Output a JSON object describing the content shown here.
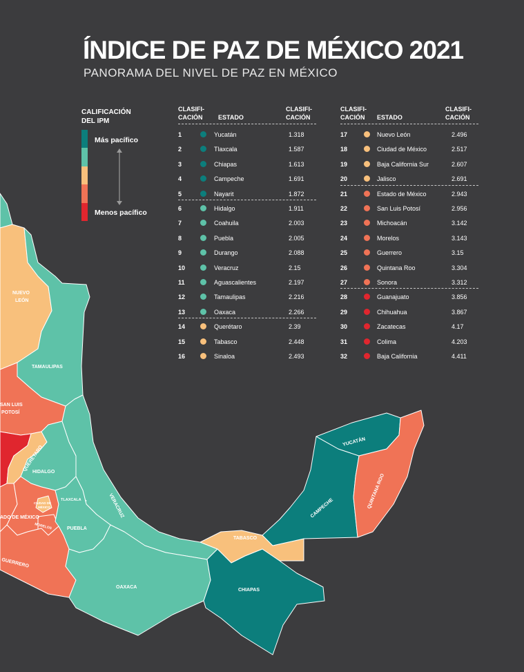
{
  "header": {
    "title": "ÍNDICE DE PAZ DE MÉXICO 2021",
    "subtitle": "PANORAMA DEL NIVEL DE PAZ EN MÉXICO"
  },
  "legend": {
    "title_line1": "CALIFICACIÓN",
    "title_line2": "DEL IPM",
    "top_label": "Más pacífico",
    "bottom_label": "Menos pacífico",
    "colors": [
      "#0c7e7c",
      "#5ec2a8",
      "#f8c07c",
      "#f07356",
      "#e0262e"
    ]
  },
  "table": {
    "headers": {
      "rank_line1": "CLASIFI-",
      "rank_line2": "CACIÓN",
      "state": "ESTADO",
      "score_line1": "CLASIFI-",
      "score_line2": "CACIÓN"
    },
    "left": [
      {
        "rank": "1",
        "state": "Yucatán",
        "score": "1.318",
        "tier": 0
      },
      {
        "rank": "2",
        "state": "Tlaxcala",
        "score": "1.587",
        "tier": 0
      },
      {
        "rank": "3",
        "state": "Chiapas",
        "score": "1.613",
        "tier": 0
      },
      {
        "rank": "4",
        "state": "Campeche",
        "score": "1.691",
        "tier": 0
      },
      {
        "rank": "5",
        "state": "Nayarit",
        "score": "1.872",
        "tier": 0
      },
      {
        "rank": "6",
        "state": "Hidalgo",
        "score": "1.911",
        "tier": 1
      },
      {
        "rank": "7",
        "state": "Coahuila",
        "score": "2.003",
        "tier": 1
      },
      {
        "rank": "8",
        "state": "Puebla",
        "score": "2.005",
        "tier": 1
      },
      {
        "rank": "9",
        "state": "Durango",
        "score": "2.088",
        "tier": 1
      },
      {
        "rank": "10",
        "state": "Veracruz",
        "score": "2.15",
        "tier": 1
      },
      {
        "rank": "11",
        "state": "Aguascalientes",
        "score": "2.197",
        "tier": 1
      },
      {
        "rank": "12",
        "state": "Tamaulipas",
        "score": "2.216",
        "tier": 1
      },
      {
        "rank": "13",
        "state": "Oaxaca",
        "score": "2.266",
        "tier": 1
      },
      {
        "rank": "14",
        "state": "Querétaro",
        "score": "2.39",
        "tier": 2
      },
      {
        "rank": "15",
        "state": "Tabasco",
        "score": "2.448",
        "tier": 2
      },
      {
        "rank": "16",
        "state": "Sinaloa",
        "score": "2.493",
        "tier": 2
      }
    ],
    "right": [
      {
        "rank": "17",
        "state": "Nuevo León",
        "score": "2.496",
        "tier": 2
      },
      {
        "rank": "18",
        "state": "Ciudad de México",
        "score": "2.517",
        "tier": 2
      },
      {
        "rank": "19",
        "state": "Baja California Sur",
        "score": "2.607",
        "tier": 2
      },
      {
        "rank": "20",
        "state": "Jalisco",
        "score": "2.691",
        "tier": 2
      },
      {
        "rank": "21",
        "state": "Estado de México",
        "score": "2.943",
        "tier": 3
      },
      {
        "rank": "22",
        "state": "San Luis Potosí",
        "score": "2.956",
        "tier": 3
      },
      {
        "rank": "23",
        "state": "Michoacán",
        "score": "3.142",
        "tier": 3
      },
      {
        "rank": "24",
        "state": "Morelos",
        "score": "3.143",
        "tier": 3
      },
      {
        "rank": "25",
        "state": "Guerrero",
        "score": "3.15",
        "tier": 3
      },
      {
        "rank": "26",
        "state": "Quintana Roo",
        "score": "3.304",
        "tier": 3
      },
      {
        "rank": "27",
        "state": "Sonora",
        "score": "3.312",
        "tier": 3
      },
      {
        "rank": "28",
        "state": "Guanajuato",
        "score": "3.856",
        "tier": 4
      },
      {
        "rank": "29",
        "state": "Chihuahua",
        "score": "3.867",
        "tier": 4
      },
      {
        "rank": "30",
        "state": "Zacatecas",
        "score": "4.17",
        "tier": 4
      },
      {
        "rank": "31",
        "state": "Colima",
        "score": "4.203",
        "tier": 4
      },
      {
        "rank": "32",
        "state": "Baja California",
        "score": "4.411",
        "tier": 4
      }
    ]
  },
  "map": {
    "labels": {
      "nuevo_leon_1": "NUEVO",
      "nuevo_leon_2": "LEÓN",
      "tamaulipas": "TAMAULIPAS",
      "slp_1": "SAN LUIS",
      "slp_2": "POTOSÍ",
      "queretaro": "QUERÉTARO",
      "hidalgo": "HIDALGO",
      "veracruz": "VERACRUZ",
      "tlaxcala": "TLAXCALA",
      "cdmx_1": "CIUDAD DE",
      "cdmx_2": "MÉXICO",
      "edomex": "ADO DE MÉXICO",
      "morelos": "MORELOS",
      "puebla": "PUEBLA",
      "guerrero": "GUERRERO",
      "oaxaca": "OAXACA",
      "chiapas": "CHIAPAS",
      "tabasco": "TABASCO",
      "campeche": "CAMPECHE",
      "yucatan": "YUCATÁN",
      "quintana_roo": "QUINTANA ROO"
    }
  }
}
